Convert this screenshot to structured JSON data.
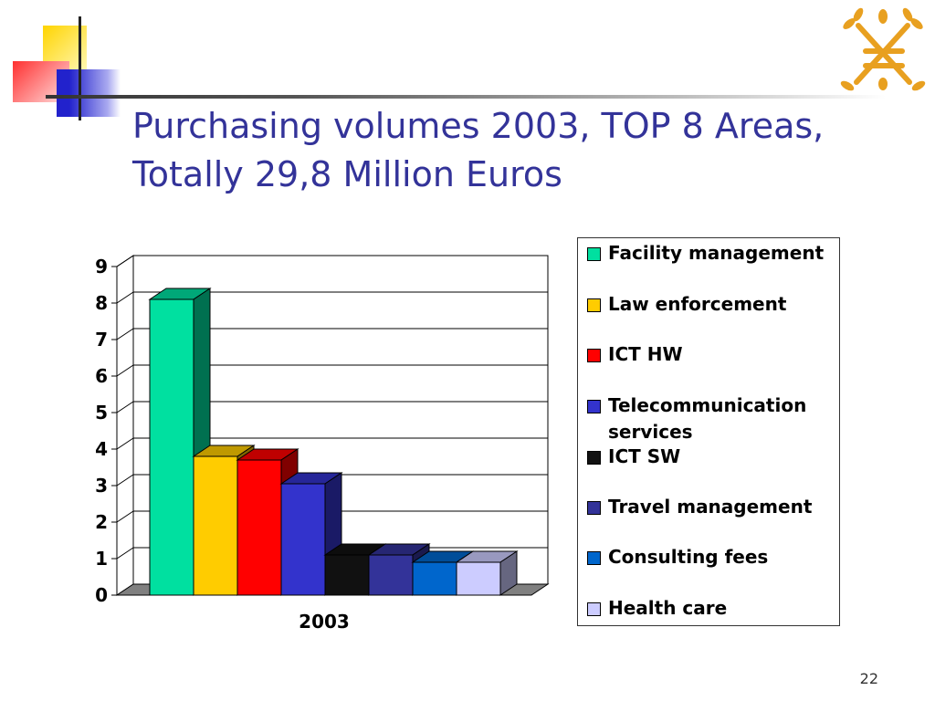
{
  "slide": {
    "title_line1": "Purchasing volumes 2003, TOP 8 Areas,",
    "title_line2": "Totally 29,8 Million Euros",
    "page_number": "22",
    "accent_color": "#333399"
  },
  "chart_data": {
    "type": "bar",
    "style": "3d-clustered",
    "categories": [
      "2003"
    ],
    "series": [
      {
        "name": "Facility management",
        "values": [
          8.1
        ],
        "color": "#00E0A0"
      },
      {
        "name": "Law enforcement",
        "values": [
          3.8
        ],
        "color": "#FFCC00"
      },
      {
        "name": "ICT HW",
        "values": [
          3.7
        ],
        "color": "#FF0000"
      },
      {
        "name": "Telecommunication services",
        "values": [
          3.05
        ],
        "color": "#3333CC"
      },
      {
        "name": "ICT SW",
        "values": [
          1.1
        ],
        "color": "#111111"
      },
      {
        "name": "Travel management",
        "values": [
          1.1
        ],
        "color": "#333399"
      },
      {
        "name": "Consulting fees",
        "values": [
          0.9
        ],
        "color": "#0066CC"
      },
      {
        "name": "Health care",
        "values": [
          0.9
        ],
        "color": "#CCCCFF"
      }
    ],
    "y_ticks": [
      "0",
      "1",
      "2",
      "3",
      "4",
      "5",
      "6",
      "7",
      "8",
      "9"
    ],
    "ylim": [
      0,
      9
    ],
    "grid": true,
    "legend_position": "right"
  }
}
